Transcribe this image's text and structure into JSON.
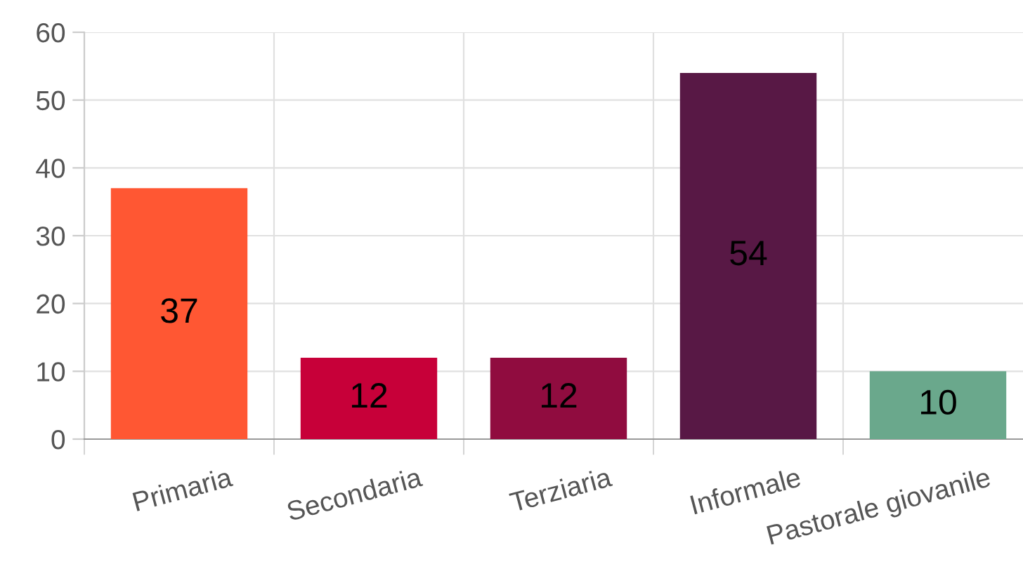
{
  "chart_data": {
    "type": "bar",
    "categories": [
      "Primaria",
      "Secondaria",
      "Terziaria",
      "Informale",
      "Pastorale giovanile"
    ],
    "values": [
      37,
      12,
      12,
      54,
      10
    ],
    "colors": [
      "#ff5733",
      "#c70039",
      "#900c3f",
      "#581845",
      "#6aa88c"
    ],
    "ylim": [
      0,
      60
    ],
    "yticks": [
      0,
      10,
      20,
      30,
      40,
      50,
      60
    ],
    "grid": true,
    "data_labels": true
  }
}
